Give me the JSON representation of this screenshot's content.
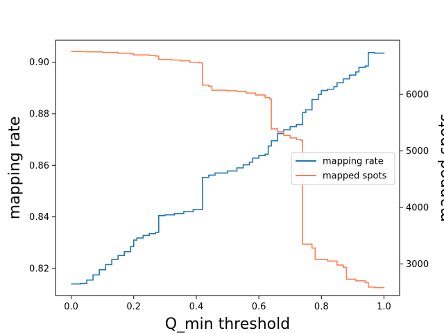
{
  "chart_data": {
    "type": "line",
    "xlabel": "Q_min threshold",
    "ylabel": "mapping rate",
    "y2label": "mapped spots",
    "xlim": [
      -0.05,
      1.05
    ],
    "ylim": [
      0.8095,
      0.9085
    ],
    "y2lim": [
      2440,
      6960
    ],
    "x_ticks": [
      "0.0",
      "0.2",
      "0.4",
      "0.6",
      "0.8",
      "1.0"
    ],
    "x_tick_values": [
      0.0,
      0.2,
      0.4,
      0.6,
      0.8,
      1.0
    ],
    "y_ticks": [
      "0.82",
      "0.84",
      "0.86",
      "0.88",
      "0.90"
    ],
    "y_tick_values": [
      0.82,
      0.84,
      0.86,
      0.88,
      0.9
    ],
    "y2_ticks": [
      "3000",
      "4000",
      "5000",
      "6000"
    ],
    "y2_tick_values": [
      3000,
      4000,
      5000,
      6000
    ],
    "legend": {
      "position": "center-right",
      "entries": [
        "mapping rate",
        "mapped spots"
      ]
    },
    "series": [
      {
        "name": "mapping rate",
        "axis": "left",
        "color": "#1f77b4",
        "x": [
          0.0,
          0.03,
          0.05,
          0.07,
          0.09,
          0.11,
          0.13,
          0.15,
          0.17,
          0.19,
          0.2,
          0.21,
          0.23,
          0.25,
          0.27,
          0.28,
          0.3,
          0.33,
          0.36,
          0.39,
          0.41,
          0.42,
          0.44,
          0.46,
          0.5,
          0.53,
          0.55,
          0.57,
          0.58,
          0.6,
          0.62,
          0.63,
          0.64,
          0.66,
          0.68,
          0.7,
          0.72,
          0.73,
          0.74,
          0.75,
          0.77,
          0.79,
          0.8,
          0.82,
          0.84,
          0.85,
          0.87,
          0.89,
          0.91,
          0.92,
          0.94,
          0.95,
          0.97,
          1.0
        ],
        "y": [
          0.814,
          0.8142,
          0.8155,
          0.8175,
          0.8195,
          0.8215,
          0.8235,
          0.825,
          0.8265,
          0.8285,
          0.831,
          0.8318,
          0.8328,
          0.8335,
          0.834,
          0.8405,
          0.8408,
          0.8413,
          0.842,
          0.8428,
          0.8428,
          0.8553,
          0.8562,
          0.857,
          0.8578,
          0.859,
          0.8602,
          0.8612,
          0.8628,
          0.8638,
          0.8643,
          0.8675,
          0.8695,
          0.8723,
          0.8738,
          0.875,
          0.8758,
          0.8758,
          0.8805,
          0.8815,
          0.8855,
          0.8875,
          0.889,
          0.8895,
          0.8905,
          0.892,
          0.8935,
          0.895,
          0.8962,
          0.898,
          0.8985,
          0.9037,
          0.9035,
          0.9033
        ]
      },
      {
        "name": "mapped spots",
        "axis": "right",
        "color": "#ff7f50",
        "x": [
          0.0,
          0.05,
          0.1,
          0.15,
          0.19,
          0.2,
          0.25,
          0.27,
          0.28,
          0.32,
          0.35,
          0.38,
          0.41,
          0.42,
          0.44,
          0.45,
          0.5,
          0.53,
          0.56,
          0.59,
          0.62,
          0.635,
          0.64,
          0.66,
          0.68,
          0.7,
          0.72,
          0.735,
          0.74,
          0.77,
          0.78,
          0.82,
          0.85,
          0.87,
          0.88,
          0.91,
          0.94,
          0.95,
          0.97,
          1.0
        ],
        "y": [
          6760,
          6755,
          6745,
          6730,
          6720,
          6700,
          6690,
          6680,
          6620,
          6610,
          6595,
          6570,
          6560,
          6165,
          6145,
          6075,
          6065,
          6050,
          6025,
          5990,
          5945,
          5920,
          5390,
          5340,
          5275,
          5230,
          5200,
          5190,
          3350,
          3280,
          3080,
          3050,
          2980,
          2940,
          2730,
          2700,
          2670,
          2590,
          2580,
          2575
        ]
      }
    ]
  }
}
